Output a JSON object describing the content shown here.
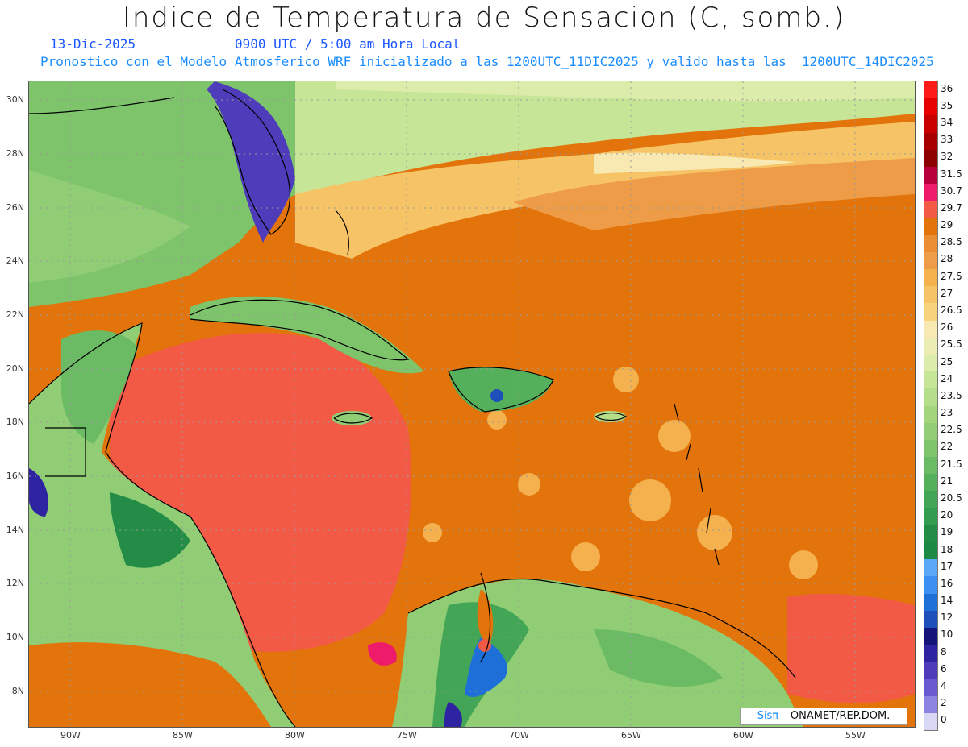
{
  "header": {
    "title": "Indice de Temperatura de Sensacion (C, somb.)",
    "date": "13-Dic-2025",
    "time": "0900 UTC / 5:00 am Hora Local",
    "model_info": "Pronostico con el Modelo Atmosferico WRF inicializado a las 1200UTC_11DIC2025 y valido hasta las  1200UTC_14DIC2025"
  },
  "map": {
    "lat_labels": [
      "30N",
      "28N",
      "26N",
      "24N",
      "22N",
      "20N",
      "18N",
      "16N",
      "14N",
      "12N",
      "10N",
      "8N"
    ],
    "lon_labels": [
      "90W",
      "85W",
      "80W",
      "75W",
      "70W",
      "65W",
      "60W",
      "55W"
    ]
  },
  "colorbar": {
    "labels": [
      "36",
      "35",
      "34",
      "33",
      "32",
      "31.5",
      "30.7",
      "29.7",
      "29",
      "28.5",
      "28",
      "27.5",
      "27",
      "26.5",
      "26",
      "25.5",
      "25",
      "24",
      "23.5",
      "23",
      "22.5",
      "22",
      "21.5",
      "21",
      "20.5",
      "20",
      "19",
      "18",
      "17",
      "16",
      "14",
      "12",
      "10",
      "8",
      "6",
      "4",
      "2",
      "0"
    ],
    "colors": [
      "#ff1a1a",
      "#e60000",
      "#c80000",
      "#a80000",
      "#8c0000",
      "#b8003c",
      "#ee1a6a",
      "#f25a46",
      "#e2740b",
      "#eb8e33",
      "#ef9c48",
      "#f4b14e",
      "#f6c466",
      "#f7d37e",
      "#f8e8b2",
      "#ecedb2",
      "#dcecab",
      "#c7e597",
      "#b5de8a",
      "#a2d57c",
      "#90cd74",
      "#7dc46b",
      "#6abb63",
      "#55b05c",
      "#43a657",
      "#329c50",
      "#238d47",
      "#1c8a44",
      "#5aa8f5",
      "#3a8ff0",
      "#1e6fd8",
      "#1e4fbb",
      "#14147a",
      "#2e23a0",
      "#4e3cba",
      "#6a5ad0",
      "#8c82e0",
      "#d8d8f4"
    ]
  },
  "credit": {
    "brand": "Sisπ",
    "text": " – ONAMET/REP.DOM."
  }
}
